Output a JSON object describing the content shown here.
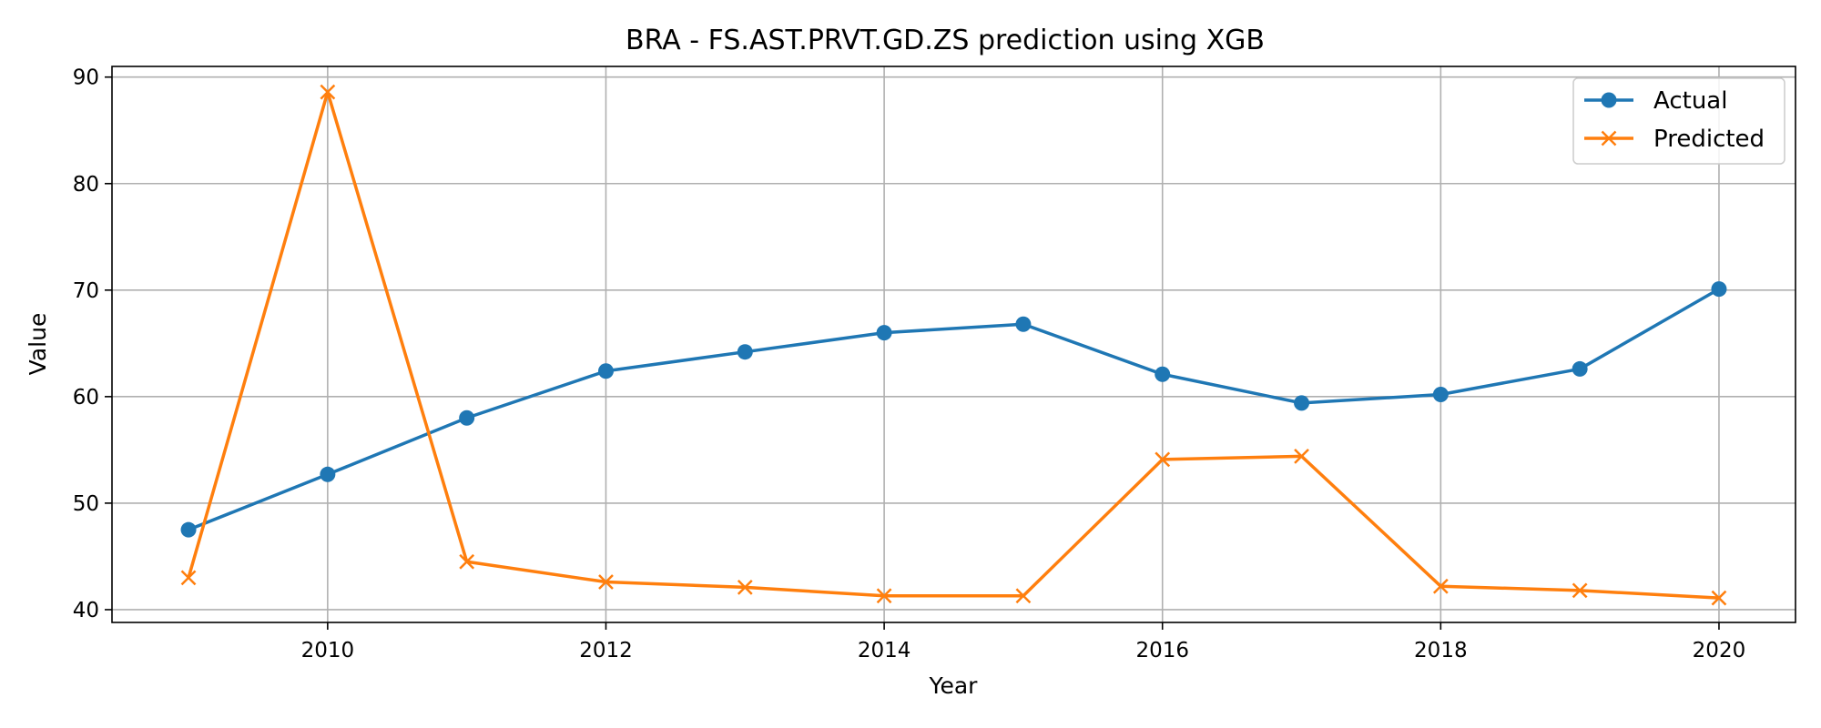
{
  "chart_data": {
    "type": "line",
    "title": "BRA - FS.AST.PRVT.GD.ZS prediction using XGB",
    "xlabel": "Year",
    "ylabel": "Value",
    "x": [
      2009,
      2010,
      2011,
      2012,
      2013,
      2014,
      2015,
      2016,
      2017,
      2018,
      2019,
      2020
    ],
    "xlim": [
      2008.45,
      2020.55
    ],
    "ylim": [
      38.8,
      91.0
    ],
    "xticks": [
      2010,
      2012,
      2014,
      2016,
      2018,
      2020
    ],
    "yticks": [
      40,
      50,
      60,
      70,
      80,
      90
    ],
    "grid": true,
    "legend_position": "upper right",
    "series": [
      {
        "name": "Actual",
        "color": "#1f77b4",
        "marker": "circle",
        "values": [
          47.5,
          52.7,
          58.0,
          62.4,
          64.2,
          66.0,
          66.8,
          62.1,
          59.4,
          60.2,
          62.6,
          70.1
        ]
      },
      {
        "name": "Predicted",
        "color": "#ff7f0e",
        "marker": "x",
        "values": [
          43.0,
          88.6,
          44.5,
          42.6,
          42.1,
          41.3,
          41.3,
          54.1,
          54.4,
          42.2,
          41.8,
          41.1
        ]
      }
    ]
  }
}
